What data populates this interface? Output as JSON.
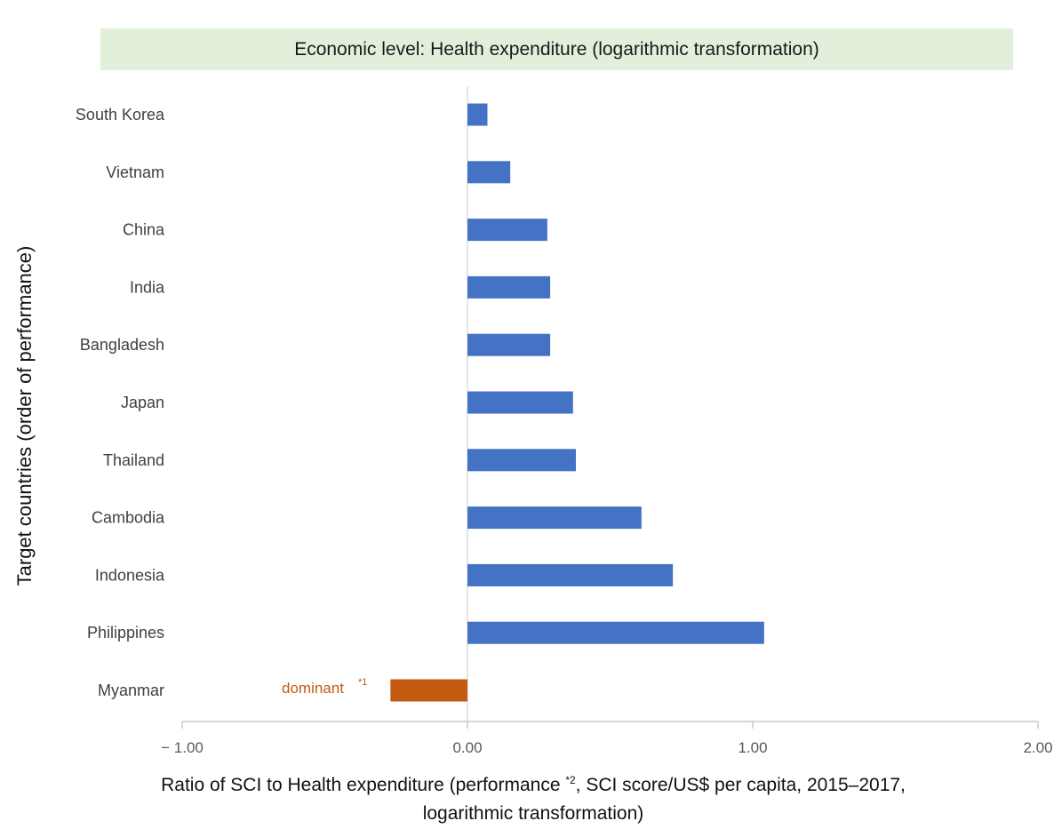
{
  "chart_data": {
    "type": "bar",
    "orientation": "horizontal",
    "title": "Economic level: Health expenditure (logarithmic transformation)",
    "ylabel": "Target countries (order of performance)",
    "xlabel_line1_pre": "Ratio of SCI to Health expenditure (performance ",
    "xlabel_sup": "*2",
    "xlabel_line1_post": ", SCI score/US$ per capita, 2015–2017,",
    "xlabel_line2": "logarithmic transformation)",
    "xlim": [
      -1.0,
      2.0
    ],
    "xticks": [
      -1.0,
      0.0,
      1.0,
      2.0
    ],
    "xtick_labels": [
      "− 1.00",
      "0.00",
      "1.00",
      "2.00"
    ],
    "categories": [
      "South Korea",
      "Vietnam",
      "China",
      "India",
      "Bangladesh",
      "Japan",
      "Thailand",
      "Cambodia",
      "Indonesia",
      "Philippines",
      "Myanmar"
    ],
    "values": [
      0.07,
      0.15,
      0.28,
      0.29,
      0.29,
      0.37,
      0.38,
      0.61,
      0.72,
      1.04,
      -0.27
    ],
    "colors": [
      "#4472c4",
      "#4472c4",
      "#4472c4",
      "#4472c4",
      "#4472c4",
      "#4472c4",
      "#4472c4",
      "#4472c4",
      "#4472c4",
      "#4472c4",
      "#c55a11"
    ],
    "annotation": {
      "category": "Myanmar",
      "text": "dominant",
      "sup": "*1",
      "color": "#c55a11"
    }
  }
}
